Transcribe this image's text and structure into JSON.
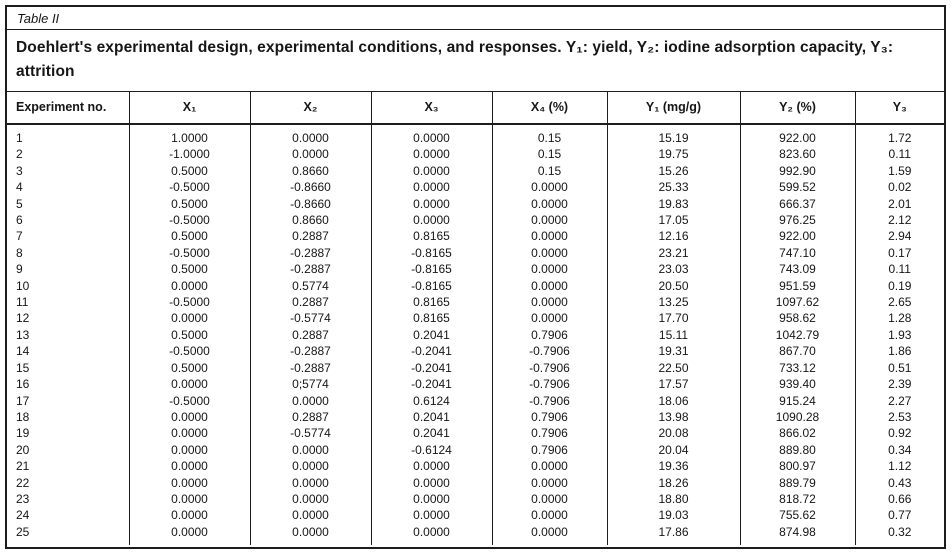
{
  "table_label": "Table II",
  "title": "Doehlert's experimental design, experimental conditions, and responses. Y₁: yield, Y₂: iodine adsorption capacity, Y₃: attrition",
  "table": {
    "columns": [
      "Experiment no.",
      "X₁",
      "X₂",
      "X₃",
      "X₄ (%)",
      "Y₁ (mg/g)",
      "Y₂ (%)",
      "Y₃"
    ],
    "rows": [
      [
        "1",
        "1.0000",
        "0.0000",
        "0.0000",
        "0.15",
        "15.19",
        "922.00",
        "1.72"
      ],
      [
        "2",
        "-1.0000",
        "0.0000",
        "0.0000",
        "0.15",
        "19.75",
        "823.60",
        "0.11"
      ],
      [
        "3",
        "0.5000",
        "0.8660",
        "0.0000",
        "0.15",
        "15.26",
        "992.90",
        "1.59"
      ],
      [
        "4",
        "-0.5000",
        "-0.8660",
        "0.0000",
        "0.0000",
        "25.33",
        "599.52",
        "0.02"
      ],
      [
        "5",
        "0.5000",
        "-0.8660",
        "0.0000",
        "0.0000",
        "19.83",
        "666.37",
        "2.01"
      ],
      [
        "6",
        "-0.5000",
        "0.8660",
        "0.0000",
        "0.0000",
        "17.05",
        "976.25",
        "2.12"
      ],
      [
        "7",
        "0.5000",
        "0.2887",
        "0.8165",
        "0.0000",
        "12.16",
        "922.00",
        "2.94"
      ],
      [
        "8",
        "-0.5000",
        "-0.2887",
        "-0.8165",
        "0.0000",
        "23.21",
        "747.10",
        "0.17"
      ],
      [
        "9",
        "0.5000",
        "-0.2887",
        "-0.8165",
        "0.0000",
        "23.03",
        "743.09",
        "0.11"
      ],
      [
        "10",
        "0.0000",
        "0.5774",
        "-0.8165",
        "0.0000",
        "20.50",
        "951.59",
        "0.19"
      ],
      [
        "11",
        "-0.5000",
        "0.2887",
        "0.8165",
        "0.0000",
        "13.25",
        "1097.62",
        "2.65"
      ],
      [
        "12",
        "0.0000",
        "-0.5774",
        "0.8165",
        "0.0000",
        "17.70",
        "958.62",
        "1.28"
      ],
      [
        "13",
        "0.5000",
        "0.2887",
        "0.2041",
        "0.7906",
        "15.11",
        "1042.79",
        "1.93"
      ],
      [
        "14",
        "-0.5000",
        "-0.2887",
        "-0.2041",
        "-0.7906",
        "19.31",
        "867.70",
        "1.86"
      ],
      [
        "15",
        "0.5000",
        "-0.2887",
        "-0.2041",
        "-0.7906",
        "22.50",
        "733.12",
        "0.51"
      ],
      [
        "16",
        "0.0000",
        "0;5774",
        "-0.2041",
        "-0.7906",
        "17.57",
        "939.40",
        "2.39"
      ],
      [
        "17",
        "-0.5000",
        "0.0000",
        "0.6124",
        "-0.7906",
        "18.06",
        "915.24",
        "2.27"
      ],
      [
        "18",
        "0.0000",
        "0.2887",
        "0.2041",
        "0.7906",
        "13.98",
        "1090.28",
        "2.53"
      ],
      [
        "19",
        "0.0000",
        "-0.5774",
        "0.2041",
        "0.7906",
        "20.08",
        "866.02",
        "0.92"
      ],
      [
        "20",
        "0.0000",
        "0.0000",
        "-0.6124",
        "0.7906",
        "20.04",
        "889.80",
        "0.34"
      ],
      [
        "21",
        "0.0000",
        "0.0000",
        "0.0000",
        "0.0000",
        "19.36",
        "800.97",
        "1.12"
      ],
      [
        "22",
        "0.0000",
        "0.0000",
        "0.0000",
        "0.0000",
        "18.26",
        "889.79",
        "0.43"
      ],
      [
        "23",
        "0.0000",
        "0.0000",
        "0.0000",
        "0.0000",
        "18.80",
        "818.72",
        "0.66"
      ],
      [
        "24",
        "0.0000",
        "0.0000",
        "0.0000",
        "0.0000",
        "19.03",
        "755.62",
        "0.77"
      ],
      [
        "25",
        "0.0000",
        "0.0000",
        "0.0000",
        "0.0000",
        "17.86",
        "874.98",
        "0.32"
      ]
    ]
  }
}
